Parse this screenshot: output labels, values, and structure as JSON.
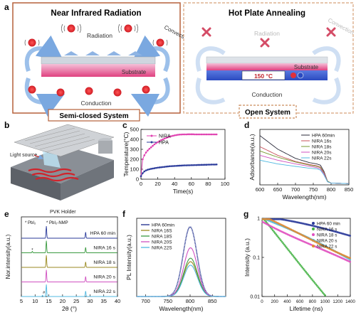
{
  "panels": {
    "a": {
      "letter": "a",
      "left": {
        "title": "Near Infrared Radiation",
        "radiation": "Radiation",
        "convection": "Convection",
        "substrate": "Substrate",
        "conduction": "Conduction",
        "system": "Semi-closed System"
      },
      "right": {
        "title": "Hot Plate Annealing",
        "radiation": "Radiation",
        "convection": "Convection",
        "substrate": "Substrate",
        "temp": "150 °C",
        "conduction": "Conduction",
        "system": "Open System"
      }
    },
    "b": {
      "letter": "b",
      "light_source": "Light source",
      "holder": "PVK Holder"
    },
    "c": {
      "letter": "c"
    },
    "d": {
      "letter": "d"
    },
    "e": {
      "letter": "e"
    },
    "f": {
      "letter": "f"
    },
    "g": {
      "letter": "g"
    }
  },
  "colors": {
    "left_frame": "#b5603a",
    "right_frame": "#c98a5a",
    "nira": "#e040b0",
    "hpa": "#2a3a9a",
    "heater": "#e0303a",
    "substrate_pink": "#e85590",
    "hotplate_blue": "#3a5fd0"
  },
  "chart_data": [
    {
      "panel": "c",
      "type": "line",
      "xlabel": "Time(s)",
      "ylabel": "Temperature(°C)",
      "xlim": [
        0,
        100
      ],
      "ylim": [
        0,
        500
      ],
      "xticks": [
        0,
        20,
        40,
        60,
        80,
        100
      ],
      "yticks": [
        0,
        100,
        200,
        300,
        400,
        500
      ],
      "legend_placement": "top-left",
      "series": [
        {
          "name": "NIRA",
          "color": "#e040b0",
          "marker": "circle",
          "x": [
            0,
            2,
            4,
            6,
            8,
            10,
            12,
            14,
            16,
            18,
            20,
            22,
            24,
            26,
            28,
            30,
            32,
            34,
            36,
            38,
            40,
            42,
            44,
            46,
            48,
            50,
            52,
            54,
            56,
            58,
            60,
            62,
            64,
            66,
            68,
            70,
            72,
            74,
            76,
            78,
            80,
            82,
            84,
            86,
            88,
            90
          ],
          "y": [
            30,
            200,
            240,
            268,
            288,
            305,
            320,
            335,
            350,
            362,
            372,
            382,
            392,
            400,
            408,
            415,
            421,
            427,
            432,
            436,
            440,
            443,
            446,
            448,
            449,
            450,
            450,
            450,
            451,
            451,
            451,
            451,
            450,
            450,
            450,
            450,
            450,
            450,
            450,
            450,
            450,
            450,
            450,
            450,
            450,
            450
          ]
        },
        {
          "name": "HPA",
          "color": "#2a3a9a",
          "marker": "circle",
          "x": [
            0,
            2,
            4,
            6,
            8,
            10,
            12,
            14,
            16,
            18,
            20,
            22,
            24,
            26,
            28,
            30,
            32,
            34,
            36,
            38,
            40,
            42,
            44,
            46,
            48,
            50,
            52,
            54,
            56,
            58,
            60,
            62,
            64,
            66,
            68,
            70,
            72,
            74,
            76,
            78,
            80,
            82,
            84,
            86,
            88,
            90
          ],
          "y": [
            30,
            60,
            78,
            88,
            95,
            100,
            104,
            107,
            110,
            113,
            116,
            118,
            120,
            122,
            124,
            126,
            128,
            130,
            131,
            132,
            133,
            134,
            135,
            136,
            137,
            138,
            139,
            139,
            140,
            140,
            141,
            141,
            142,
            142,
            143,
            143,
            144,
            144,
            145,
            145,
            146,
            146,
            147,
            147,
            147,
            148
          ]
        }
      ]
    },
    {
      "panel": "d",
      "type": "line",
      "xlabel": "Wavelength(nm)",
      "ylabel": "Adsorbance(a.u.)",
      "xlim": [
        600,
        850
      ],
      "xticks": [
        600,
        650,
        700,
        750,
        800,
        850
      ],
      "legend_placement": "top-right",
      "series": [
        {
          "name": "HPA 60min",
          "color": "#2a2a3a",
          "x": [
            600,
            650,
            700,
            740,
            760,
            770,
            780,
            790,
            800,
            850
          ],
          "y": [
            0.8,
            0.58,
            0.43,
            0.36,
            0.34,
            0.32,
            0.22,
            0.06,
            0.03,
            0.02
          ]
        },
        {
          "name": "NIRA 16s",
          "color": "#c8505a",
          "x": [
            600,
            650,
            700,
            740,
            760,
            770,
            780,
            790,
            800,
            850
          ],
          "y": [
            0.62,
            0.48,
            0.38,
            0.33,
            0.31,
            0.29,
            0.2,
            0.06,
            0.03,
            0.02
          ]
        },
        {
          "name": "NIRA 18s",
          "color": "#7a9a30",
          "x": [
            600,
            650,
            700,
            740,
            760,
            770,
            780,
            790,
            800,
            850
          ],
          "y": [
            0.55,
            0.45,
            0.37,
            0.32,
            0.3,
            0.28,
            0.19,
            0.06,
            0.03,
            0.02
          ]
        },
        {
          "name": "NIRA 20s",
          "color": "#d050c0",
          "x": [
            600,
            650,
            700,
            740,
            760,
            770,
            780,
            790,
            800,
            850
          ],
          "y": [
            0.48,
            0.4,
            0.34,
            0.3,
            0.28,
            0.26,
            0.18,
            0.05,
            0.03,
            0.02
          ]
        },
        {
          "name": "NIRA 22s",
          "color": "#50b8e0",
          "x": [
            600,
            650,
            700,
            740,
            760,
            770,
            780,
            790,
            800,
            850
          ],
          "y": [
            0.4,
            0.34,
            0.3,
            0.27,
            0.26,
            0.24,
            0.16,
            0.05,
            0.03,
            0.02
          ]
        }
      ]
    },
    {
      "panel": "e",
      "type": "line",
      "xlabel": "2θ (°)",
      "ylabel": "Nor.intensity(a.u.)",
      "xlim": [
        5,
        40
      ],
      "xticks": [
        5,
        10,
        15,
        20,
        25,
        30,
        35,
        40
      ],
      "legend_entries": [
        "* PbI₂",
        "* PbI₂-NMP"
      ],
      "series": [
        {
          "name": "HPA 60 min",
          "color": "#2a3a9a",
          "peaks": [
            [
              14.1,
              1.0
            ],
            [
              28.4,
              0.5
            ]
          ]
        },
        {
          "name": "NIRA 16 s",
          "color": "#3a9a40",
          "peaks": [
            [
              14.1,
              1.0
            ],
            [
              28.4,
              0.45
            ],
            [
              9.0,
              0.12
            ]
          ]
        },
        {
          "name": "NIRA 18 s",
          "color": "#9a8a20",
          "peaks": [
            [
              14.1,
              1.0
            ],
            [
              28.4,
              0.45
            ]
          ]
        },
        {
          "name": "NIRA 20 s",
          "color": "#d050c0",
          "peaks": [
            [
              14.1,
              1.0
            ],
            [
              28.4,
              0.45
            ]
          ]
        },
        {
          "name": "NIRA 22 s",
          "color": "#50b8e0",
          "peaks": [
            [
              14.1,
              1.0
            ],
            [
              28.4,
              0.45
            ],
            [
              12.7,
              0.1
            ]
          ]
        }
      ]
    },
    {
      "panel": "f",
      "type": "line",
      "xlabel": "Wavelength(nm)",
      "ylabel": "PL Intensity(a.u.)",
      "xlim": [
        680,
        880
      ],
      "xticks": [
        700,
        750,
        800,
        850
      ],
      "legend_placement": "top-left",
      "series": [
        {
          "name": "HPA 60min",
          "color": "#1a2a8a",
          "center": 800,
          "peak": 1.0
        },
        {
          "name": "NIRA 16S",
          "color": "#9a8a20",
          "center": 801,
          "peak": 0.5
        },
        {
          "name": "NIRA 18S",
          "color": "#3a9a40",
          "center": 801,
          "peak": 0.55
        },
        {
          "name": "NIRA 20S",
          "color": "#d050c0",
          "center": 801,
          "peak": 0.7
        },
        {
          "name": "NIRA 22S",
          "color": "#50b8e0",
          "center": 801,
          "peak": 0.45
        }
      ]
    },
    {
      "panel": "g",
      "type": "scatter",
      "xlabel": "Lifetime (ns)",
      "ylabel": "Intensity (a.u.)",
      "xlim": [
        0,
        1400
      ],
      "xticks": [
        0,
        200,
        400,
        600,
        800,
        1000,
        1200,
        1400
      ],
      "yscale": "log",
      "ylim": [
        0.01,
        1
      ],
      "yticks": [
        0.01,
        0.1,
        1
      ],
      "legend_placement": "top-right",
      "series": [
        {
          "name": "HPA 60 min",
          "color": "#2a3a9a",
          "tau": 1400
        },
        {
          "name": "NIRA 16 s",
          "color": "#40b040",
          "tau": 230
        },
        {
          "name": "NIRA 18 s",
          "color": "#e050c0",
          "tau": 520
        },
        {
          "name": "NIRA 20 s",
          "color": "#50b8e0",
          "tau": 560
        },
        {
          "name": "NIRA 22 s",
          "color": "#e08a30",
          "tau": 650
        }
      ]
    }
  ]
}
